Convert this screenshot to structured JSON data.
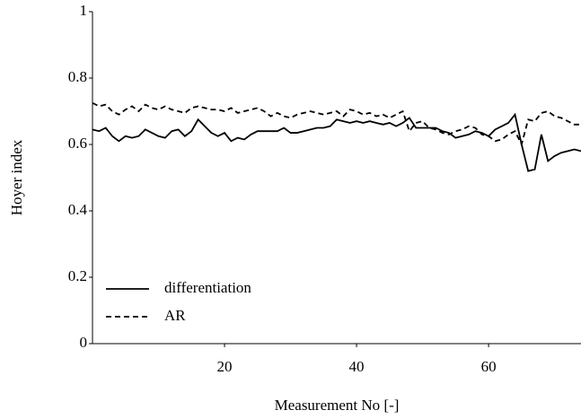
{
  "chart_data": {
    "type": "line",
    "xlabel": "Measurement No [-]",
    "ylabel": "Hoyer index",
    "x": [
      0,
      1,
      2,
      3,
      4,
      5,
      6,
      7,
      8,
      9,
      10,
      11,
      12,
      13,
      14,
      15,
      16,
      17,
      18,
      19,
      20,
      21,
      22,
      23,
      24,
      25,
      26,
      27,
      28,
      29,
      30,
      31,
      32,
      33,
      34,
      35,
      36,
      37,
      38,
      39,
      40,
      41,
      42,
      43,
      44,
      45,
      46,
      47,
      48,
      49,
      50,
      51,
      52,
      53,
      54,
      55,
      56,
      57,
      58,
      59,
      60,
      61,
      62,
      63,
      64,
      65,
      66,
      67,
      68,
      69,
      70,
      71,
      72,
      73,
      74
    ],
    "series": [
      {
        "name": "differentiation",
        "color": "#000000",
        "dash": "solid",
        "values": [
          0.645,
          0.64,
          0.65,
          0.625,
          0.61,
          0.625,
          0.62,
          0.625,
          0.645,
          0.635,
          0.625,
          0.62,
          0.64,
          0.645,
          0.625,
          0.64,
          0.675,
          0.655,
          0.635,
          0.625,
          0.635,
          0.61,
          0.62,
          0.615,
          0.63,
          0.64,
          0.64,
          0.64,
          0.64,
          0.65,
          0.635,
          0.635,
          0.64,
          0.645,
          0.65,
          0.65,
          0.655,
          0.675,
          0.67,
          0.665,
          0.67,
          0.665,
          0.67,
          0.665,
          0.66,
          0.665,
          0.655,
          0.665,
          0.68,
          0.65,
          0.65,
          0.65,
          0.65,
          0.64,
          0.635,
          0.62,
          0.625,
          0.63,
          0.64,
          0.635,
          0.625,
          0.645,
          0.655,
          0.665,
          0.69,
          0.6,
          0.52,
          0.525,
          0.63,
          0.55,
          0.565,
          0.575,
          0.58,
          0.585,
          0.58
        ]
      },
      {
        "name": "AR",
        "color": "#000000",
        "dash": "dashed",
        "values": [
          0.725,
          0.715,
          0.72,
          0.7,
          0.69,
          0.705,
          0.715,
          0.7,
          0.72,
          0.71,
          0.705,
          0.715,
          0.705,
          0.7,
          0.695,
          0.71,
          0.715,
          0.71,
          0.705,
          0.705,
          0.7,
          0.71,
          0.695,
          0.7,
          0.705,
          0.71,
          0.7,
          0.685,
          0.695,
          0.685,
          0.68,
          0.69,
          0.695,
          0.7,
          0.695,
          0.69,
          0.695,
          0.7,
          0.685,
          0.705,
          0.7,
          0.69,
          0.695,
          0.685,
          0.69,
          0.68,
          0.69,
          0.7,
          0.64,
          0.665,
          0.67,
          0.65,
          0.645,
          0.635,
          0.63,
          0.64,
          0.645,
          0.655,
          0.65,
          0.63,
          0.625,
          0.61,
          0.615,
          0.63,
          0.64,
          0.6,
          0.675,
          0.67,
          0.695,
          0.7,
          0.685,
          0.68,
          0.67,
          0.66,
          0.66
        ]
      }
    ],
    "xlim": [
      0,
      74
    ],
    "xticks": [
      20,
      40,
      60
    ],
    "ylim": [
      0,
      1
    ],
    "yticks": [
      0,
      0.2,
      0.4,
      0.6,
      0.8,
      1
    ],
    "grid": false,
    "legend": "lower left"
  }
}
